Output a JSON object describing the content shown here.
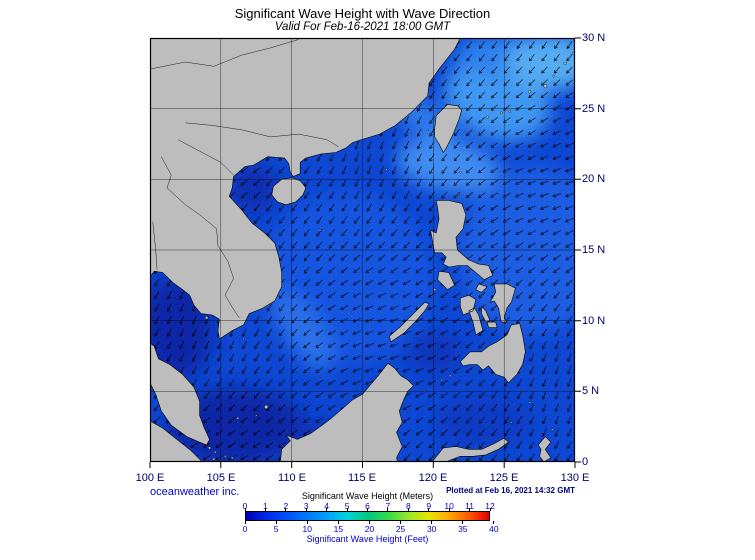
{
  "title": "Significant Wave Height with Wave Direction",
  "subtitle": "Valid For Feb-16-2021 18:00 GMT",
  "axes": {
    "x_ticks": [
      "100 E",
      "105 E",
      "110 E",
      "115 E",
      "120 E",
      "125 E",
      "130 E"
    ],
    "y_ticks": [
      "30 N",
      "25 N",
      "20 N",
      "15 N",
      "10 N",
      "5 N",
      "0"
    ]
  },
  "footer": {
    "credit": "oceanweather inc.",
    "plotted": "Plotted at Feb 16, 2021 14:32 GMT"
  },
  "legend": {
    "meters_label": "Significant Wave Height (Meters)",
    "feet_label": "Significant Wave Height (Feet)",
    "meter_ticks": [
      "0",
      "1",
      "2",
      "3",
      "4",
      "5",
      "6",
      "7",
      "8",
      "9",
      "10",
      "11",
      "12"
    ],
    "feet_ticks": [
      "0",
      "5",
      "10",
      "15",
      "20",
      "25",
      "30",
      "35",
      "40"
    ],
    "meters_max": 12,
    "feet_to_meters": 0.3048,
    "colors": [
      "#0000b4",
      "#0028e6",
      "#0050ff",
      "#0078ff",
      "#00a0ff",
      "#00d2dc",
      "#00c87d",
      "#32dc4b",
      "#96e628",
      "#e6e600",
      "#ffaa00",
      "#ff5a00",
      "#e60000"
    ]
  },
  "map": {
    "lon_min": 100,
    "lon_max": 130,
    "lat_min": 0,
    "lat_max": 30,
    "land_color": "#bdbdbd",
    "ocean_base": "#0d47d2",
    "arrow_color": "#000000",
    "accent_text_color": "#0000c8"
  }
}
